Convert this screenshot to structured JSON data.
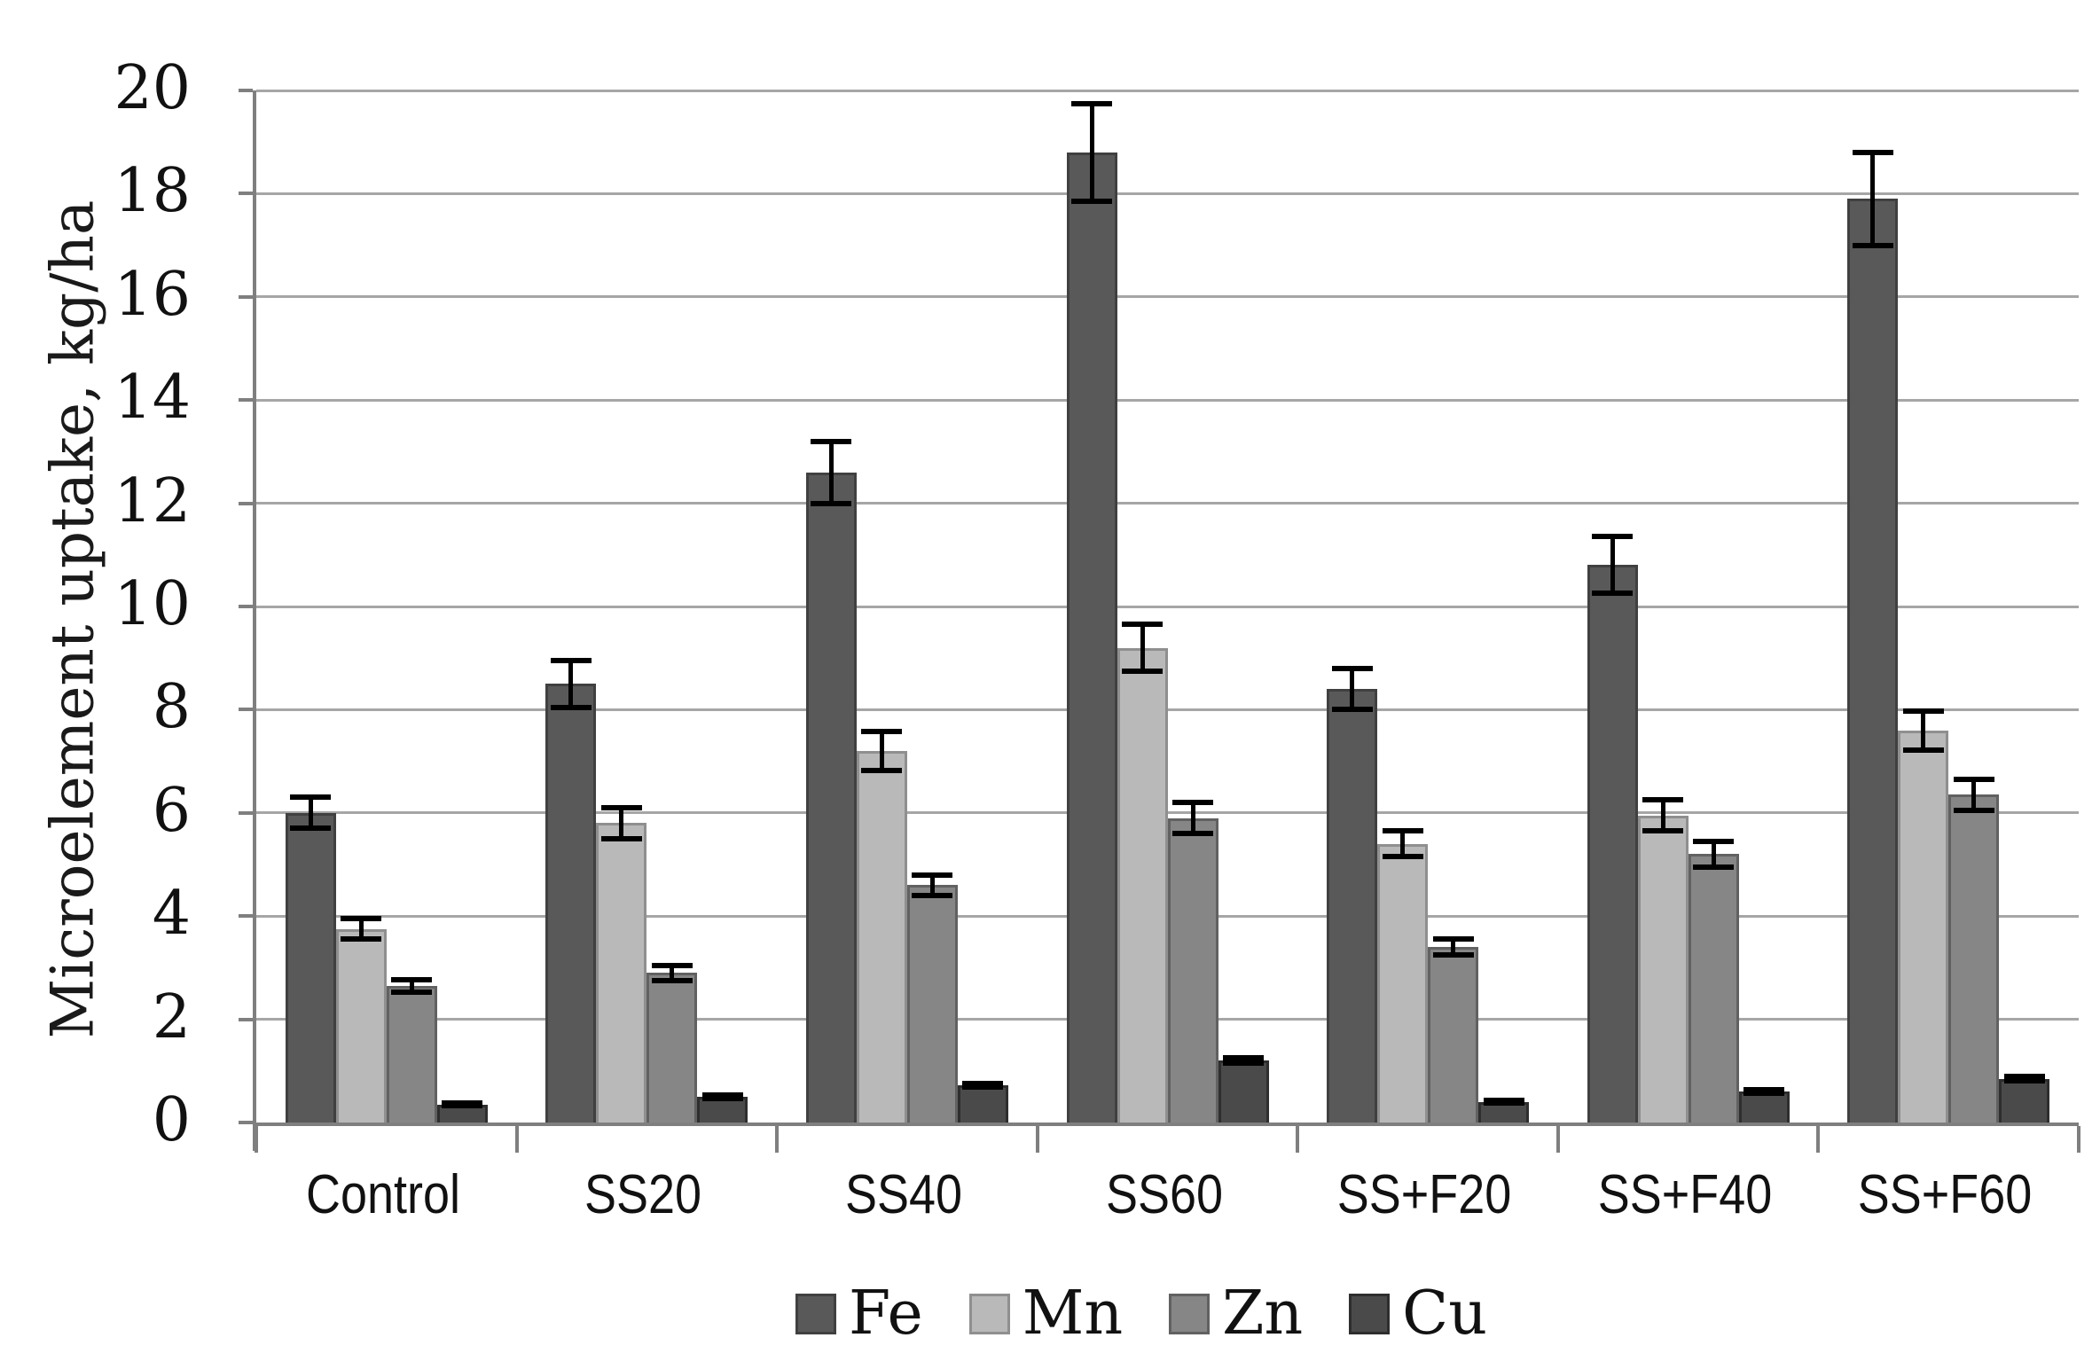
{
  "chart_data": {
    "type": "bar",
    "title": "",
    "xlabel": "",
    "ylabel": "Microelement uptake, kg/ha",
    "ylim": [
      0,
      20
    ],
    "ytick_step": 2,
    "yticks": [
      0,
      2,
      4,
      6,
      8,
      10,
      12,
      14,
      16,
      18,
      20
    ],
    "grid": true,
    "error_bars": true,
    "legend_position": "bottom",
    "categories": [
      "Control",
      "SS20",
      "SS40",
      "SS60",
      "SS+F20",
      "SS+F40",
      "SS+F60"
    ],
    "series": [
      {
        "name": "Fe",
        "color": "#595959",
        "border_color": "#404040",
        "values": [
          6.0,
          8.5,
          12.6,
          18.8,
          8.4,
          10.8,
          17.9
        ],
        "errors": [
          0.3,
          0.45,
          0.6,
          0.95,
          0.4,
          0.55,
          0.9
        ]
      },
      {
        "name": "Mn",
        "color": "#b9b9b9",
        "border_color": "#8f8f8f",
        "values": [
          3.75,
          5.8,
          7.2,
          9.2,
          5.4,
          5.95,
          7.6
        ],
        "errors": [
          0.2,
          0.3,
          0.38,
          0.45,
          0.25,
          0.3,
          0.38
        ]
      },
      {
        "name": "Zn",
        "color": "#868686",
        "border_color": "#616161",
        "values": [
          2.65,
          2.9,
          4.6,
          5.9,
          3.4,
          5.2,
          6.35
        ],
        "errors": [
          0.12,
          0.15,
          0.2,
          0.3,
          0.15,
          0.25,
          0.3
        ]
      },
      {
        "name": "Cu",
        "color": "#4a4a4a",
        "border_color": "#2e2e2e",
        "values": [
          0.35,
          0.5,
          0.72,
          1.2,
          0.4,
          0.6,
          0.85
        ],
        "errors": [
          0.03,
          0.03,
          0.04,
          0.05,
          0.03,
          0.04,
          0.04
        ]
      }
    ]
  }
}
